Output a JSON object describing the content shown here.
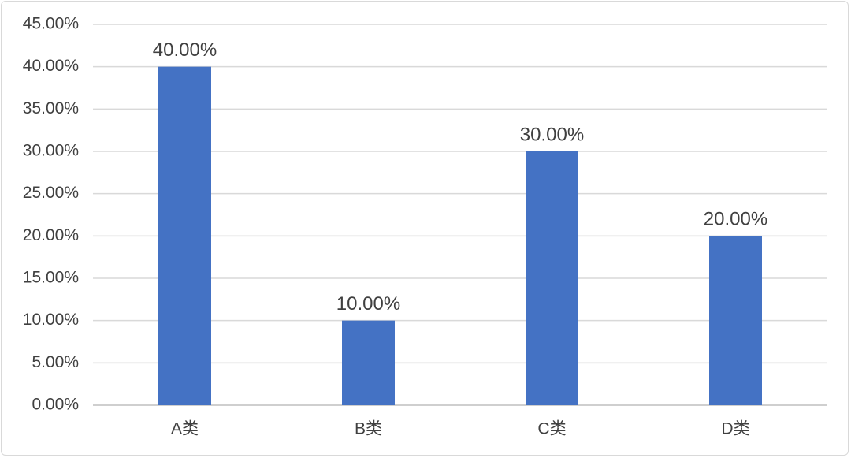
{
  "chart_data": {
    "type": "bar",
    "categories": [
      "A类",
      "B类",
      "C类",
      "D类"
    ],
    "values": [
      40.0,
      10.0,
      30.0,
      20.0
    ],
    "data_labels": [
      "40.00%",
      "10.00%",
      "30.00%",
      "20.00%"
    ],
    "title": "",
    "xlabel": "",
    "ylabel": "",
    "ylim": [
      0,
      45
    ],
    "y_ticks": [
      0,
      5,
      10,
      15,
      20,
      25,
      30,
      35,
      40,
      45
    ],
    "y_tick_labels": [
      "0.00%",
      "5.00%",
      "10.00%",
      "15.00%",
      "20.00%",
      "25.00%",
      "30.00%",
      "35.00%",
      "40.00%",
      "45.00%"
    ],
    "grid": true,
    "legend": "none",
    "bar_color": "#4472c4",
    "grid_color": "#d9d9d9",
    "text_color": "#404040"
  }
}
